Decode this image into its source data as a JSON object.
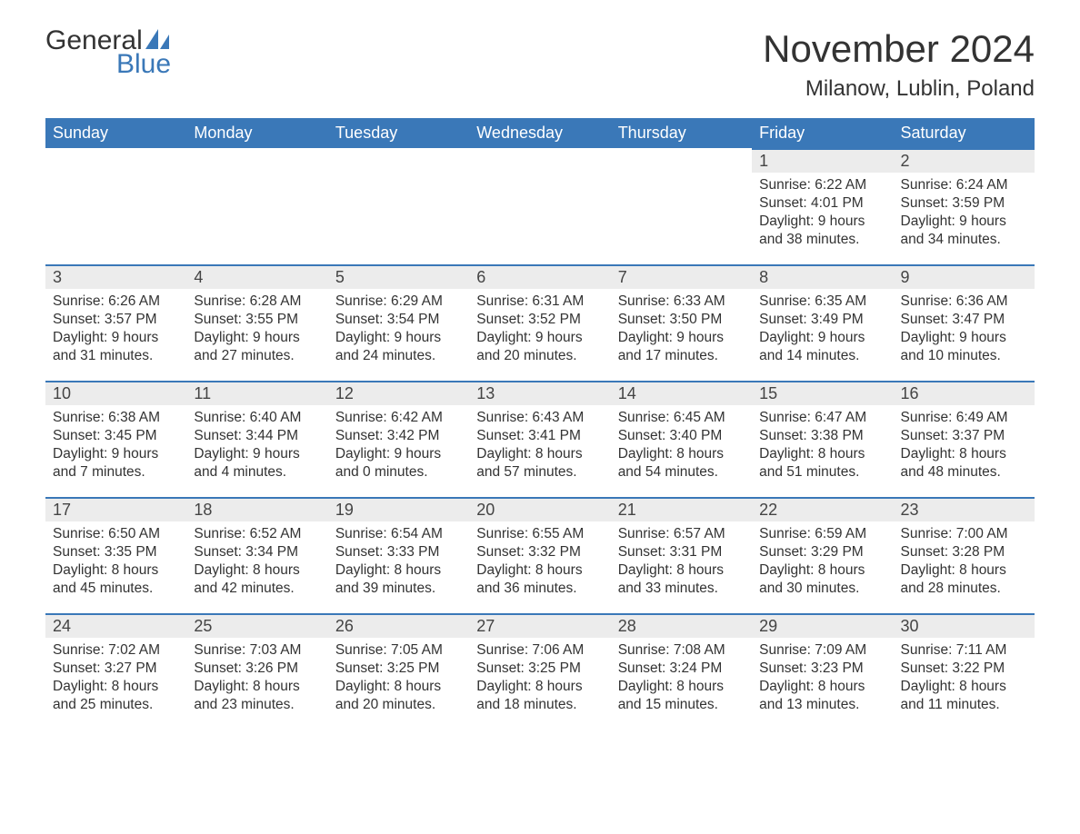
{
  "logo": {
    "line1": "General",
    "line2": "Blue",
    "icon_color": "#3a78b8"
  },
  "title": {
    "month": "November 2024",
    "location": "Milanow, Lublin, Poland"
  },
  "colors": {
    "header_bg": "#3a78b8",
    "header_fg": "#ffffff",
    "daynum_bg": "#ececec",
    "daynum_border": "#3a78b8",
    "text": "#333333",
    "page_bg": "#ffffff"
  },
  "weekdays": [
    "Sunday",
    "Monday",
    "Tuesday",
    "Wednesday",
    "Thursday",
    "Friday",
    "Saturday"
  ],
  "weeks": [
    [
      null,
      null,
      null,
      null,
      null,
      {
        "n": "1",
        "sunrise": "6:22 AM",
        "sunset": "4:01 PM",
        "daylight": "9 hours and 38 minutes."
      },
      {
        "n": "2",
        "sunrise": "6:24 AM",
        "sunset": "3:59 PM",
        "daylight": "9 hours and 34 minutes."
      }
    ],
    [
      {
        "n": "3",
        "sunrise": "6:26 AM",
        "sunset": "3:57 PM",
        "daylight": "9 hours and 31 minutes."
      },
      {
        "n": "4",
        "sunrise": "6:28 AM",
        "sunset": "3:55 PM",
        "daylight": "9 hours and 27 minutes."
      },
      {
        "n": "5",
        "sunrise": "6:29 AM",
        "sunset": "3:54 PM",
        "daylight": "9 hours and 24 minutes."
      },
      {
        "n": "6",
        "sunrise": "6:31 AM",
        "sunset": "3:52 PM",
        "daylight": "9 hours and 20 minutes."
      },
      {
        "n": "7",
        "sunrise": "6:33 AM",
        "sunset": "3:50 PM",
        "daylight": "9 hours and 17 minutes."
      },
      {
        "n": "8",
        "sunrise": "6:35 AM",
        "sunset": "3:49 PM",
        "daylight": "9 hours and 14 minutes."
      },
      {
        "n": "9",
        "sunrise": "6:36 AM",
        "sunset": "3:47 PM",
        "daylight": "9 hours and 10 minutes."
      }
    ],
    [
      {
        "n": "10",
        "sunrise": "6:38 AM",
        "sunset": "3:45 PM",
        "daylight": "9 hours and 7 minutes."
      },
      {
        "n": "11",
        "sunrise": "6:40 AM",
        "sunset": "3:44 PM",
        "daylight": "9 hours and 4 minutes."
      },
      {
        "n": "12",
        "sunrise": "6:42 AM",
        "sunset": "3:42 PM",
        "daylight": "9 hours and 0 minutes."
      },
      {
        "n": "13",
        "sunrise": "6:43 AM",
        "sunset": "3:41 PM",
        "daylight": "8 hours and 57 minutes."
      },
      {
        "n": "14",
        "sunrise": "6:45 AM",
        "sunset": "3:40 PM",
        "daylight": "8 hours and 54 minutes."
      },
      {
        "n": "15",
        "sunrise": "6:47 AM",
        "sunset": "3:38 PM",
        "daylight": "8 hours and 51 minutes."
      },
      {
        "n": "16",
        "sunrise": "6:49 AM",
        "sunset": "3:37 PM",
        "daylight": "8 hours and 48 minutes."
      }
    ],
    [
      {
        "n": "17",
        "sunrise": "6:50 AM",
        "sunset": "3:35 PM",
        "daylight": "8 hours and 45 minutes."
      },
      {
        "n": "18",
        "sunrise": "6:52 AM",
        "sunset": "3:34 PM",
        "daylight": "8 hours and 42 minutes."
      },
      {
        "n": "19",
        "sunrise": "6:54 AM",
        "sunset": "3:33 PM",
        "daylight": "8 hours and 39 minutes."
      },
      {
        "n": "20",
        "sunrise": "6:55 AM",
        "sunset": "3:32 PM",
        "daylight": "8 hours and 36 minutes."
      },
      {
        "n": "21",
        "sunrise": "6:57 AM",
        "sunset": "3:31 PM",
        "daylight": "8 hours and 33 minutes."
      },
      {
        "n": "22",
        "sunrise": "6:59 AM",
        "sunset": "3:29 PM",
        "daylight": "8 hours and 30 minutes."
      },
      {
        "n": "23",
        "sunrise": "7:00 AM",
        "sunset": "3:28 PM",
        "daylight": "8 hours and 28 minutes."
      }
    ],
    [
      {
        "n": "24",
        "sunrise": "7:02 AM",
        "sunset": "3:27 PM",
        "daylight": "8 hours and 25 minutes."
      },
      {
        "n": "25",
        "sunrise": "7:03 AM",
        "sunset": "3:26 PM",
        "daylight": "8 hours and 23 minutes."
      },
      {
        "n": "26",
        "sunrise": "7:05 AM",
        "sunset": "3:25 PM",
        "daylight": "8 hours and 20 minutes."
      },
      {
        "n": "27",
        "sunrise": "7:06 AM",
        "sunset": "3:25 PM",
        "daylight": "8 hours and 18 minutes."
      },
      {
        "n": "28",
        "sunrise": "7:08 AM",
        "sunset": "3:24 PM",
        "daylight": "8 hours and 15 minutes."
      },
      {
        "n": "29",
        "sunrise": "7:09 AM",
        "sunset": "3:23 PM",
        "daylight": "8 hours and 13 minutes."
      },
      {
        "n": "30",
        "sunrise": "7:11 AM",
        "sunset": "3:22 PM",
        "daylight": "8 hours and 11 minutes."
      }
    ]
  ],
  "labels": {
    "sunrise": "Sunrise:",
    "sunset": "Sunset:",
    "daylight": "Daylight:"
  }
}
